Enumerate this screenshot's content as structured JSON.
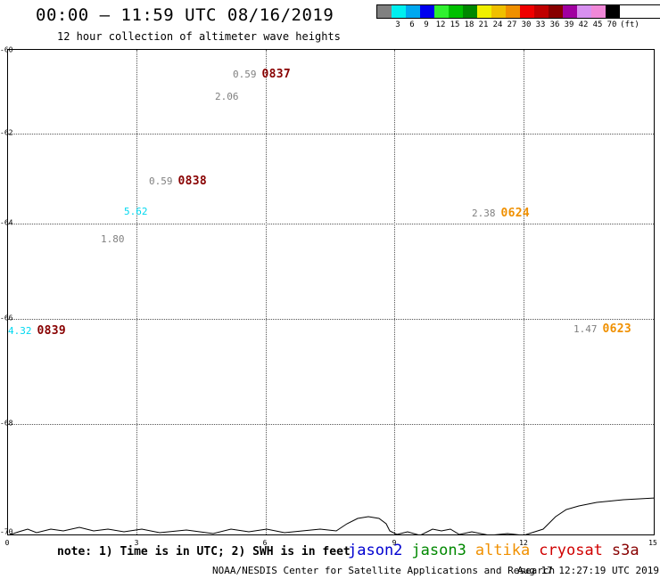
{
  "header": {
    "title": "00:00 – 11:59 UTC 08/16/2019",
    "subtitle": "12 hour collection of altimeter wave heights"
  },
  "legend": {
    "colors": [
      "#808080",
      "#00f0f0",
      "#00a8f0",
      "#0000f0",
      "#30f030",
      "#00c000",
      "#008800",
      "#f0f000",
      "#f0c000",
      "#f09000",
      "#f00000",
      "#c00000",
      "#880000",
      "#a000a0",
      "#d890f0",
      "#f088d8",
      "#000000"
    ],
    "labels": [
      "3",
      "6",
      "9",
      "12",
      "15",
      "18",
      "21",
      "24",
      "27",
      "30",
      "33",
      "36",
      "39",
      "42",
      "45",
      "70",
      "(ft)"
    ]
  },
  "map": {
    "y_ticks": [
      "-60",
      "-62",
      "-64",
      "-66",
      "-68",
      "-70"
    ],
    "x_ticks": [
      "0",
      "3",
      "6",
      "9",
      "12",
      "15"
    ],
    "observations": [
      {
        "time": "0837",
        "swh": "0.59",
        "swh_color": "#808080",
        "time_color": "#880000"
      },
      {
        "time": "0838",
        "swh": "0.59",
        "swh_color": "#808080",
        "time_color": "#880000"
      },
      {
        "time": "0839",
        "swh": "4.32",
        "swh_color": "#00d8f0",
        "time_color": "#880000"
      },
      {
        "time": "0624",
        "swh": "2.38",
        "swh_color": "#808080",
        "time_color": "#f09000"
      },
      {
        "time": "0623",
        "swh": "1.47",
        "swh_color": "#808080",
        "time_color": "#f09000"
      }
    ],
    "points": [
      {
        "swh": "2.06",
        "color": "#808080"
      },
      {
        "swh": "5.62",
        "color": "#00d8f0"
      },
      {
        "swh": "1.80",
        "color": "#808080"
      }
    ]
  },
  "footer": {
    "note": "note: 1) Time is in UTC; 2) SWH is in feet",
    "missions": [
      {
        "name": "jason2",
        "color": "#0000d0"
      },
      {
        "name": "jason3",
        "color": "#008800"
      },
      {
        "name": "altika",
        "color": "#f09000"
      },
      {
        "name": "cryosat",
        "color": "#d00000"
      },
      {
        "name": "s3a",
        "color": "#880000"
      }
    ],
    "credit": "NOAA/NESDIS Center for Satellite Applications and Research",
    "timestamp": "Aug 17 12:27:19 UTC 2019"
  }
}
